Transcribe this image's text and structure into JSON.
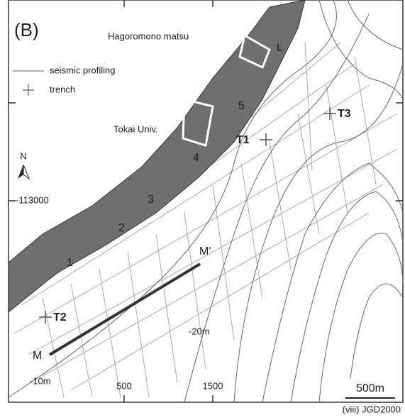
{
  "map": {
    "panel_label": "(B)",
    "legend": [
      {
        "label": "seismic profiling"
      },
      {
        "label": "trench"
      }
    ],
    "places": [
      "Hagoromono matsu",
      "Tokai Univ."
    ],
    "segments": [
      "L",
      "5",
      "4",
      "3",
      "2",
      "1"
    ],
    "trenches": [
      "T1",
      "T2",
      "T3"
    ],
    "profile": {
      "start": "M",
      "end": "M'"
    },
    "contour_labels": [
      "-20m",
      "-10m"
    ],
    "grid_labels": {
      "y": [
        "-113000"
      ],
      "x": [
        "500",
        "1500"
      ]
    },
    "north": "N",
    "scale_bar": "500m",
    "caption": "(viii) JGD2000"
  }
}
